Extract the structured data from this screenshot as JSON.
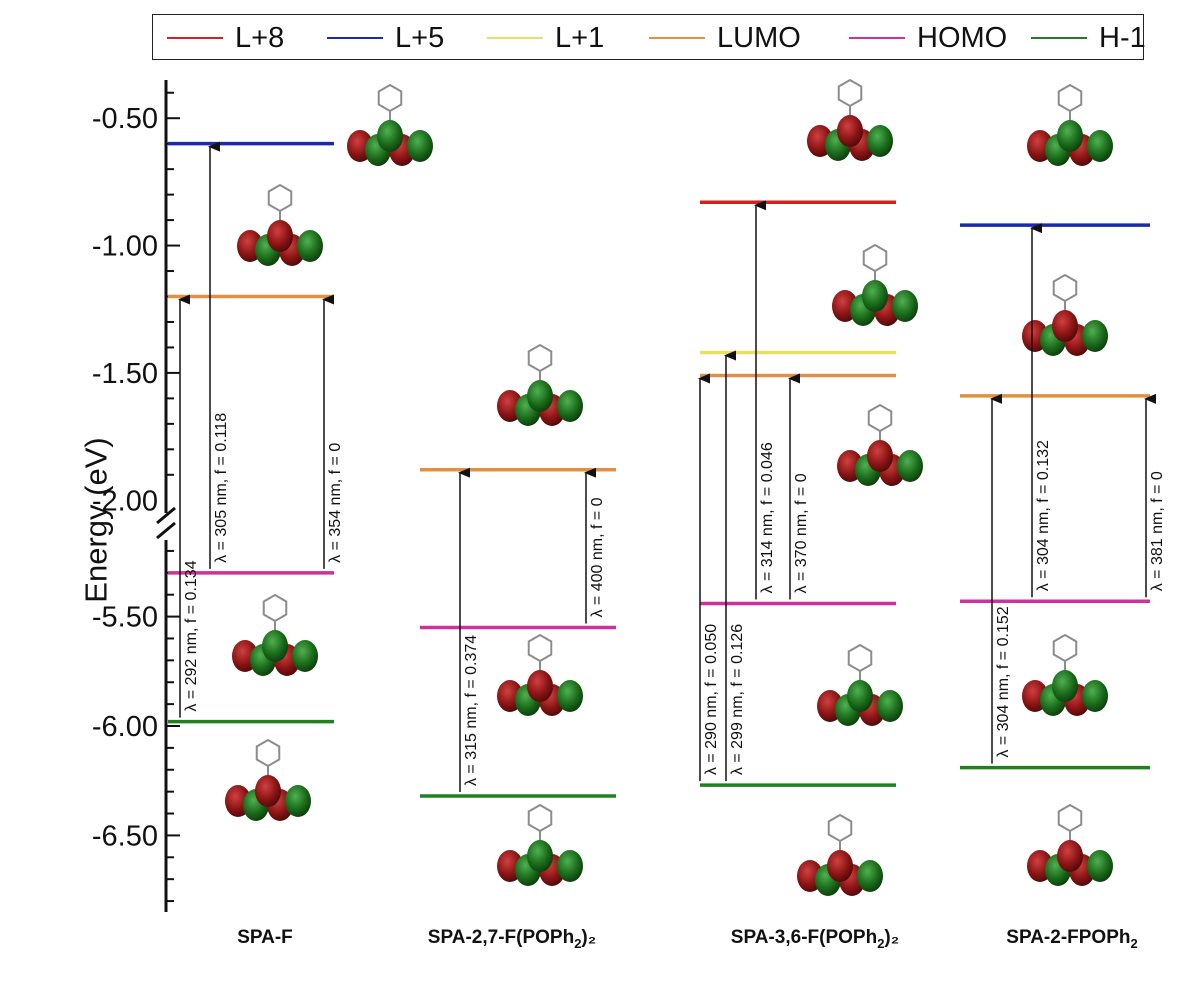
{
  "legend": [
    {
      "label": "L+8",
      "color": "#d42020"
    },
    {
      "label": "L+5",
      "color": "#1a2ab0"
    },
    {
      "label": "L+1",
      "color": "#e8e060"
    },
    {
      "label": "LUMO",
      "color": "#e09040"
    },
    {
      "label": "HOMO",
      "color": "#d0309a"
    },
    {
      "label": "H-1",
      "color": "#208020"
    }
  ],
  "y_axis": {
    "title": "Energy (eV)",
    "upper_ticks": [
      "-0.50",
      "-1.00",
      "-1.50",
      "-2.00"
    ],
    "lower_ticks": [
      "-5.50",
      "-6.00",
      "-6.50"
    ],
    "upper_range": [
      -2.05,
      -0.35
    ],
    "lower_range": [
      -6.85,
      -5.15
    ]
  },
  "compounds": [
    {
      "name": "SPA-F",
      "sub": "",
      "tail": "",
      "levels": [
        {
          "orbital": "L+5",
          "energy": -0.6
        },
        {
          "orbital": "LUMO",
          "energy": -1.2
        },
        {
          "orbital": "HOMO",
          "energy": -5.3
        },
        {
          "orbital": "H-1",
          "energy": -5.98
        }
      ],
      "transitions": [
        {
          "from": "H-1",
          "to": "LUMO",
          "label": "λ = 292 nm, f = 0.134"
        },
        {
          "from": "HOMO",
          "to": "L+5",
          "label": "λ = 305 nm, f = 0.118"
        },
        {
          "from": "HOMO",
          "to": "LUMO",
          "label": "λ = 354 nm, f = 0"
        }
      ]
    },
    {
      "name": "SPA-2,7-F(POPh",
      "sub": "2",
      "tail": ")₂",
      "levels": [
        {
          "orbital": "LUMO",
          "energy": -1.88
        },
        {
          "orbital": "HOMO",
          "energy": -5.55
        },
        {
          "orbital": "H-1",
          "energy": -6.32
        }
      ],
      "transitions": [
        {
          "from": "H-1",
          "to": "LUMO",
          "label": "λ = 315 nm, f = 0.374"
        },
        {
          "from": "HOMO",
          "to": "LUMO",
          "label": "λ = 400 nm, f = 0"
        }
      ]
    },
    {
      "name": "SPA-3,6-F(POPh",
      "sub": "2",
      "tail": ")₂",
      "levels": [
        {
          "orbital": "L+8",
          "energy": -0.83
        },
        {
          "orbital": "L+1",
          "energy": -1.42
        },
        {
          "orbital": "LUMO",
          "energy": -1.51
        },
        {
          "orbital": "HOMO",
          "energy": -5.44
        },
        {
          "orbital": "H-1",
          "energy": -6.27
        }
      ],
      "transitions": [
        {
          "from": "H-1",
          "to": "LUMO",
          "label": "λ = 290 nm, f = 0.050"
        },
        {
          "from": "H-1",
          "to": "L+1",
          "label": "λ = 299 nm, f = 0.126"
        },
        {
          "from": "HOMO",
          "to": "L+8",
          "label": "λ = 314 nm, f = 0.046"
        },
        {
          "from": "HOMO",
          "to": "LUMO",
          "label": "λ = 370 nm, f = 0"
        }
      ]
    },
    {
      "name": "SPA-2-FPOPh",
      "sub": "2",
      "tail": "",
      "levels": [
        {
          "orbital": "L+5",
          "energy": -0.92
        },
        {
          "orbital": "LUMO",
          "energy": -1.59
        },
        {
          "orbital": "HOMO",
          "energy": -5.43
        },
        {
          "orbital": "H-1",
          "energy": -6.19
        }
      ],
      "transitions": [
        {
          "from": "H-1",
          "to": "LUMO",
          "label": "λ = 304 nm, f = 0.152"
        },
        {
          "from": "HOMO",
          "to": "L+5",
          "label": "λ = 304 nm, f = 0.132"
        },
        {
          "from": "HOMO",
          "to": "LUMO",
          "label": "λ = 381 nm, f = 0"
        }
      ]
    }
  ],
  "orbital_pictures": [
    {
      "compound": "SPA-F",
      "orbital": "L+5",
      "icon": "molecular-orbital-icon"
    },
    {
      "compound": "SPA-F",
      "orbital": "LUMO",
      "icon": "molecular-orbital-icon"
    },
    {
      "compound": "SPA-F",
      "orbital": "HOMO",
      "icon": "molecular-orbital-icon"
    },
    {
      "compound": "SPA-F",
      "orbital": "H-1",
      "icon": "molecular-orbital-icon"
    }
  ]
}
